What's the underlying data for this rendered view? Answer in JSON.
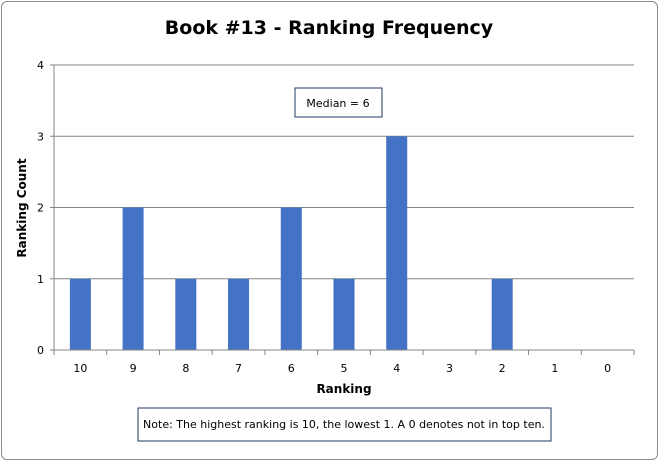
{
  "chart_data": {
    "type": "bar",
    "title": "Book #13 - Ranking Frequency",
    "xlabel": "Ranking",
    "ylabel": "Ranking Count",
    "categories": [
      "10",
      "9",
      "8",
      "7",
      "6",
      "5",
      "4",
      "3",
      "2",
      "1",
      "0"
    ],
    "values": [
      1,
      2,
      1,
      1,
      2,
      1,
      3,
      0,
      1,
      0,
      0
    ],
    "ylim": [
      0,
      4
    ],
    "yticks": [
      0,
      1,
      2,
      3,
      4
    ],
    "grid": "horizontal",
    "bar_color": "#4472C4",
    "annotations": {
      "median": "Median = 6",
      "note": "Note: The highest ranking is 10, the lowest 1. A 0 denotes not in top ten."
    }
  }
}
